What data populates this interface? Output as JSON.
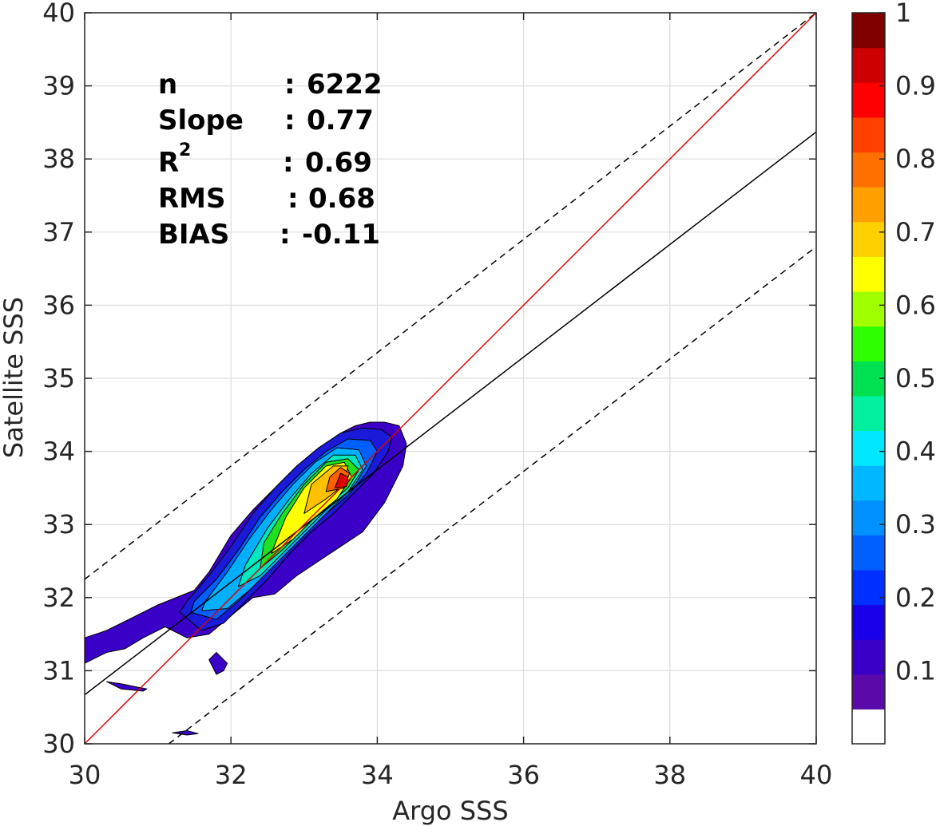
{
  "chart_data": {
    "type": "scatter",
    "subtype": "density-contour",
    "xlabel": "Argo SSS",
    "ylabel": "Satellite SSS",
    "xlim": [
      30,
      40
    ],
    "ylim": [
      30,
      40
    ],
    "xticks": [
      30,
      32,
      34,
      36,
      38,
      40
    ],
    "yticks": [
      30,
      31,
      32,
      33,
      34,
      35,
      36,
      37,
      38,
      39,
      40
    ],
    "grid": true,
    "stats": {
      "n_label": "n",
      "n_value": "6222",
      "slope_label": "Slope",
      "slope_value": "0.77",
      "r2_label": "R",
      "r2_sup": "2",
      "r2_value": "0.69",
      "rms_label": "RMS",
      "rms_value": "0.68",
      "bias_label": "BIAS",
      "bias_value": "-0.11",
      "sep": ":"
    },
    "lines": {
      "one_to_one": {
        "x": [
          30,
          40
        ],
        "y": [
          30,
          40
        ],
        "color": "#dd0000"
      },
      "fit": {
        "x": [
          30,
          40
        ],
        "y": [
          30.67,
          38.37
        ],
        "color": "#000000"
      },
      "upper_dashed": {
        "x": [
          30,
          40
        ],
        "y": [
          32.25,
          40.0
        ],
        "color": "#000000"
      },
      "lower_dashed": {
        "x": [
          31.15,
          40
        ],
        "y": [
          30.0,
          36.8
        ],
        "color": "#000000"
      }
    },
    "density_levels": [
      {
        "level": 0.05,
        "color": "#3a00c8",
        "x": [
          30.0,
          30.3,
          30.55,
          30.8,
          31.1,
          31.4,
          31.7,
          32.0,
          32.3,
          32.6,
          32.9,
          33.2,
          33.5,
          33.8,
          34.1,
          34.35,
          34.4,
          34.3,
          34.1,
          33.9,
          33.7,
          33.5,
          33.2,
          32.9,
          32.6,
          32.3,
          32.0,
          31.7,
          31.5,
          31.0,
          30.6,
          30.3,
          30.0
        ],
        "y": [
          31.1,
          31.25,
          31.3,
          31.45,
          31.6,
          31.45,
          31.5,
          31.75,
          32.0,
          32.05,
          32.3,
          32.5,
          32.7,
          32.9,
          33.3,
          33.8,
          34.1,
          34.35,
          34.4,
          34.4,
          34.35,
          34.25,
          34.05,
          33.8,
          33.5,
          33.2,
          32.85,
          32.35,
          32.1,
          31.9,
          31.7,
          31.55,
          31.45
        ]
      },
      {
        "level": 0.1,
        "color": "#1a1ad8",
        "x": [
          31.3,
          31.6,
          31.9,
          32.2,
          32.5,
          32.8,
          33.1,
          33.4,
          33.7,
          33.95,
          34.15,
          34.2,
          34.05,
          33.8,
          33.5,
          33.2,
          32.9,
          32.6,
          32.3,
          32.0,
          31.7,
          31.4,
          31.3
        ],
        "y": [
          31.8,
          31.55,
          31.65,
          31.95,
          32.25,
          32.6,
          32.9,
          33.15,
          33.45,
          33.7,
          34.0,
          34.2,
          34.3,
          34.32,
          34.25,
          34.05,
          33.8,
          33.5,
          33.15,
          32.7,
          32.3,
          31.95,
          31.8
        ]
      },
      {
        "level": 0.2,
        "color": "#0060ff",
        "x": [
          31.45,
          31.8,
          32.1,
          32.4,
          32.7,
          33.0,
          33.3,
          33.6,
          33.85,
          34.0,
          33.9,
          33.6,
          33.3,
          33.0,
          32.7,
          32.4,
          32.1,
          31.8,
          31.5,
          31.45
        ],
        "y": [
          31.8,
          31.7,
          31.95,
          32.25,
          32.55,
          32.85,
          33.15,
          33.4,
          33.7,
          34.0,
          34.15,
          34.17,
          34.0,
          33.75,
          33.45,
          33.1,
          32.65,
          32.25,
          31.95,
          31.8
        ]
      },
      {
        "level": 0.3,
        "color": "#00b0ff",
        "x": [
          31.6,
          31.95,
          32.25,
          32.55,
          32.85,
          33.15,
          33.45,
          33.7,
          33.85,
          33.75,
          33.45,
          33.15,
          32.85,
          32.55,
          32.25,
          31.95,
          31.65,
          31.6
        ],
        "y": [
          31.82,
          31.85,
          32.1,
          32.4,
          32.7,
          33.0,
          33.3,
          33.55,
          33.8,
          34.02,
          34.05,
          33.85,
          33.55,
          33.2,
          32.8,
          32.35,
          31.95,
          31.82
        ]
      },
      {
        "level": 0.4,
        "color": "#00e8c0",
        "x": [
          32.1,
          32.4,
          32.7,
          33.0,
          33.3,
          33.6,
          33.8,
          33.7,
          33.4,
          33.1,
          32.8,
          32.5,
          32.2,
          32.1
        ],
        "y": [
          32.15,
          32.3,
          32.6,
          32.9,
          33.2,
          33.45,
          33.75,
          33.95,
          33.95,
          33.7,
          33.35,
          32.95,
          32.45,
          32.15
        ]
      },
      {
        "level": 0.5,
        "color": "#20e020",
        "x": [
          32.4,
          32.7,
          33.0,
          33.3,
          33.6,
          33.75,
          33.6,
          33.3,
          33.0,
          32.7,
          32.45,
          32.4
        ],
        "y": [
          32.4,
          32.65,
          32.95,
          33.25,
          33.5,
          33.75,
          33.9,
          33.85,
          33.55,
          33.15,
          32.75,
          32.4
        ]
      },
      {
        "level": 0.6,
        "color": "#ffff00",
        "x": [
          32.55,
          32.85,
          33.15,
          33.45,
          33.65,
          33.55,
          33.3,
          33.0,
          32.75,
          32.55
        ],
        "y": [
          32.6,
          32.8,
          33.1,
          33.35,
          33.65,
          33.85,
          33.8,
          33.5,
          33.1,
          32.6
        ]
      },
      {
        "level": 0.7,
        "color": "#ffc000",
        "x": [
          33.0,
          33.3,
          33.55,
          33.6,
          33.4,
          33.1,
          33.0
        ],
        "y": [
          33.15,
          33.35,
          33.55,
          33.8,
          33.8,
          33.55,
          33.15
        ]
      },
      {
        "level": 0.8,
        "color": "#ff6000",
        "x": [
          33.3,
          33.55,
          33.62,
          33.5,
          33.35,
          33.3
        ],
        "y": [
          33.45,
          33.5,
          33.7,
          33.78,
          33.65,
          33.45
        ]
      },
      {
        "level": 0.9,
        "color": "#e00000",
        "x": [
          33.42,
          33.58,
          33.6,
          33.5,
          33.42
        ],
        "y": [
          33.5,
          33.52,
          33.65,
          33.7,
          33.5
        ]
      }
    ],
    "islands": [
      {
        "level": 0.05,
        "color": "#3a00c8",
        "x": [
          30.3,
          30.5,
          30.7,
          30.85,
          30.8,
          30.5,
          30.3
        ],
        "y": [
          30.85,
          30.82,
          30.78,
          30.75,
          30.72,
          30.75,
          30.85
        ]
      },
      {
        "level": 0.05,
        "color": "#3a00c8",
        "x": [
          31.7,
          31.8,
          31.95,
          31.9,
          31.8,
          31.7
        ],
        "y": [
          31.15,
          31.25,
          31.1,
          31.0,
          30.95,
          31.15
        ]
      },
      {
        "level": 0.05,
        "color": "#3a00c8",
        "x": [
          31.2,
          31.4,
          31.55,
          31.4,
          31.2
        ],
        "y": [
          30.15,
          30.18,
          30.14,
          30.12,
          30.15
        ]
      }
    ],
    "colorbar": {
      "ticks": [
        0.1,
        0.2,
        0.3,
        0.4,
        0.5,
        0.6,
        0.7,
        0.8,
        0.9,
        1
      ],
      "tick_labels": [
        "0.1",
        "0.2",
        "0.3",
        "0.4",
        "0.5",
        "0.6",
        "0.7",
        "0.8",
        "0.9",
        "1"
      ],
      "range": [
        0,
        1
      ],
      "colors": [
        "#ffffff",
        "#5a0aa8",
        "#3a00c8",
        "#1a00e8",
        "#0030ff",
        "#0060ff",
        "#0090ff",
        "#00b8ff",
        "#00e8ff",
        "#00f0a0",
        "#00e050",
        "#30ff00",
        "#a0ff00",
        "#ffff00",
        "#ffd000",
        "#ffa000",
        "#ff7000",
        "#ff4000",
        "#ff0000",
        "#cc0000",
        "#800000"
      ]
    }
  }
}
